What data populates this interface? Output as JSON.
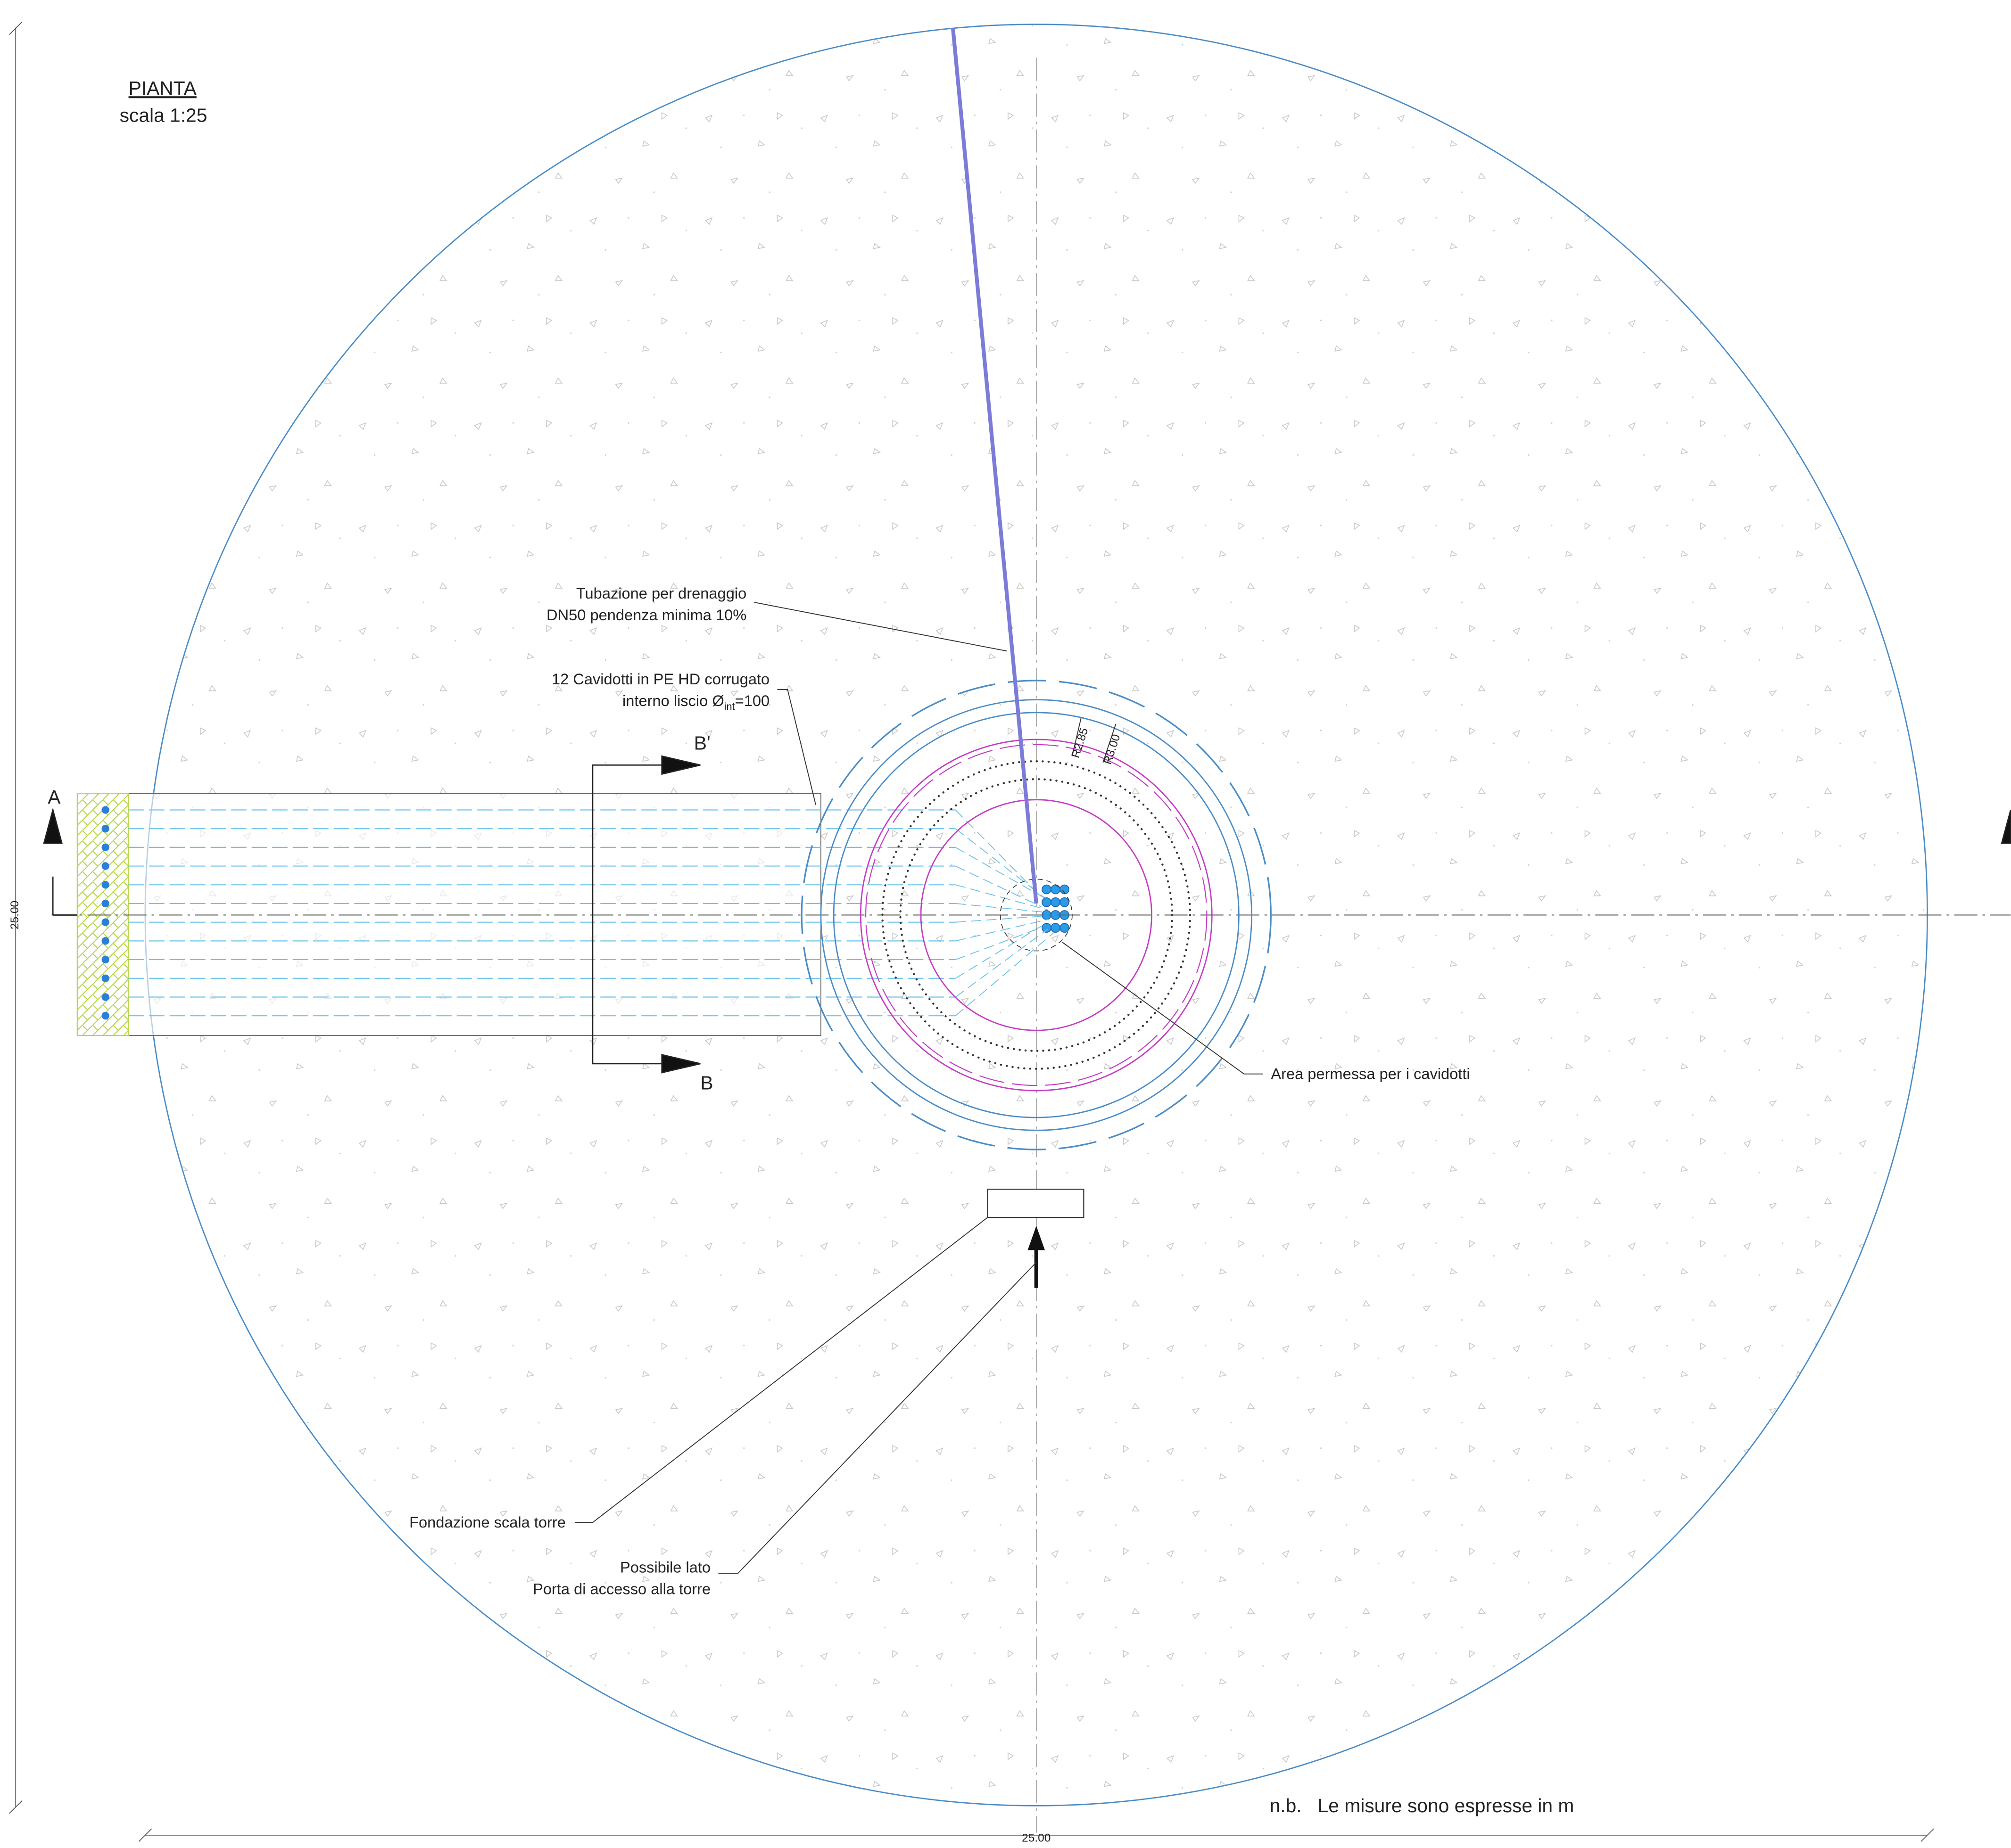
{
  "title": "PIANTA",
  "scale": "scala 1:25",
  "labels": {
    "drainage": [
      "Tubazione per drenaggio",
      "DN50 pendenza minima 10%"
    ],
    "ducts": [
      "12 Cavidotti in PE HD corrugato",
      "interno liscio Ø",
      "int",
      "=100"
    ],
    "area": "Area permessa per i cavidotti",
    "foundation": "Fondazione scala torre",
    "door": [
      "Possibile lato",
      "Porta di accesso alla torre"
    ],
    "radius_inner": "R2.85",
    "radius_outer": "R3.00"
  },
  "sections": {
    "a": "A",
    "b": "B",
    "b_prime": "B'"
  },
  "note": "n.b.   Le misure sono espresse in m",
  "dimensions": {
    "vertical": "25.00",
    "horizontal": "25.00"
  }
}
